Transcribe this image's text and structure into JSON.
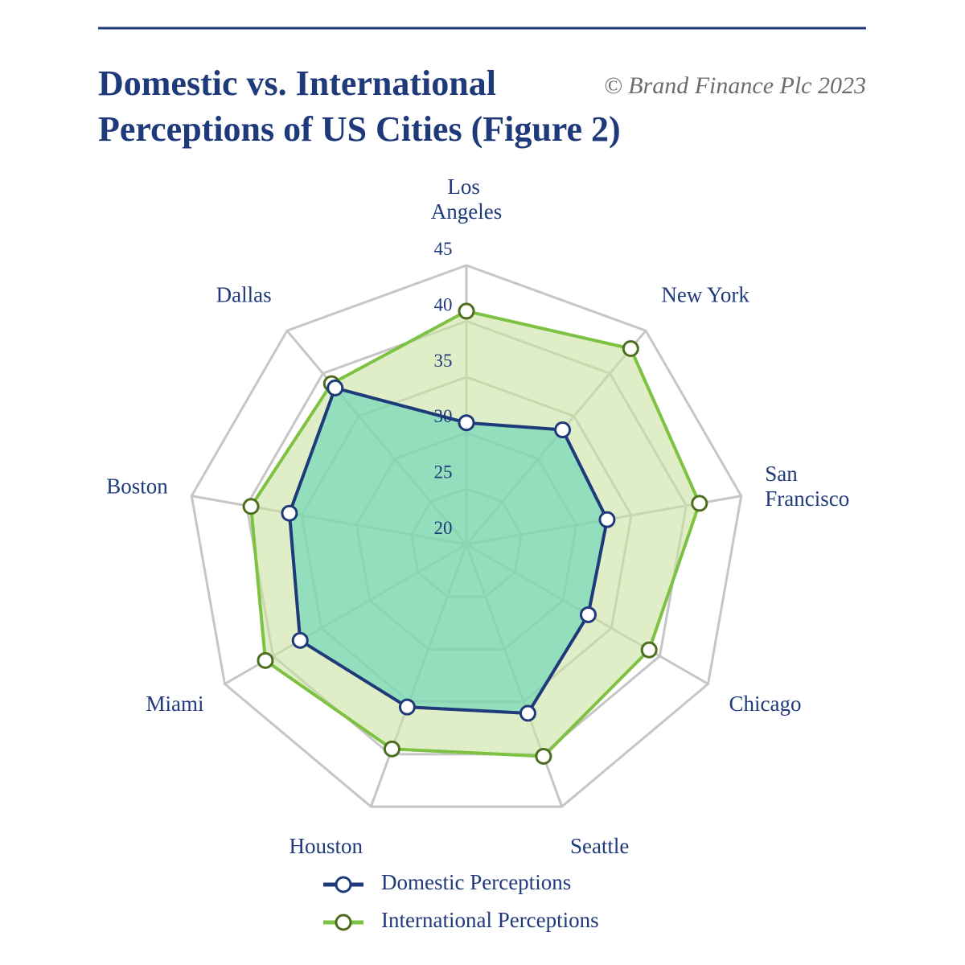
{
  "chart_data": {
    "type": "radar",
    "title": [
      "Domestic vs. International",
      "Perceptions of US Cities (Figure 2)"
    ],
    "copyright": "© Brand Finance Plc 2023",
    "categories": [
      "Los Angeles",
      "New York",
      "San Francisco",
      "Chicago",
      "Seattle",
      "Houston",
      "Miami",
      "Boston",
      "Dallas"
    ],
    "ylim": [
      20,
      45
    ],
    "yticks": [
      20,
      25,
      30,
      35,
      40,
      45
    ],
    "series": [
      {
        "name": "International Perceptions",
        "color": "#7dc242",
        "fill": "#c9e2a0",
        "marker_color": "#4d6e1e",
        "values": [
          40.9,
          42.9,
          41.2,
          38.9,
          40.2,
          39.5,
          40.8,
          39.6,
          38.8
        ]
      },
      {
        "name": "Domestic Perceptions",
        "color": "#1f3a7a",
        "fill": "#5fd3b8",
        "marker_color": "#1f3a7a",
        "values": [
          30.9,
          33.4,
          32.8,
          32.6,
          36.1,
          35.5,
          37.2,
          36.1,
          38.3
        ]
      }
    ],
    "legend_order": [
      1,
      0
    ]
  }
}
